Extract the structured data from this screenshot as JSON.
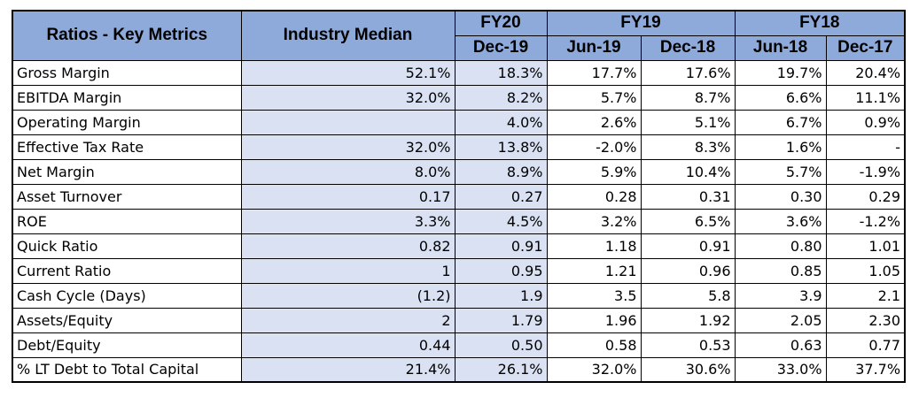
{
  "header": {
    "metric_col": "Ratios - Key Metrics",
    "median_col": "Industry Median",
    "fiscal_years": [
      "FY20",
      "FY19",
      "FY18"
    ],
    "periods": [
      "Dec-19",
      "Jun-19",
      "Dec-18",
      "Jun-18",
      "Dec-17"
    ]
  },
  "rows": [
    {
      "metric": "Gross Margin",
      "median": "52.1%",
      "values": [
        "18.3%",
        "17.7%",
        "17.6%",
        "19.7%",
        "20.4%"
      ]
    },
    {
      "metric": "EBITDA Margin",
      "median": "32.0%",
      "values": [
        "8.2%",
        "5.7%",
        "8.7%",
        "6.6%",
        "11.1%"
      ]
    },
    {
      "metric": "Operating Margin",
      "median": "",
      "values": [
        "4.0%",
        "2.6%",
        "5.1%",
        "6.7%",
        "0.9%"
      ]
    },
    {
      "metric": "Effective Tax Rate",
      "median": "32.0%",
      "values": [
        "13.8%",
        "-2.0%",
        "8.3%",
        "1.6%",
        "-"
      ]
    },
    {
      "metric": "Net Margin",
      "median": "8.0%",
      "values": [
        "8.9%",
        "5.9%",
        "10.4%",
        "5.7%",
        "-1.9%"
      ]
    },
    {
      "metric": "Asset Turnover",
      "median": "0.17",
      "values": [
        "0.27",
        "0.28",
        "0.31",
        "0.30",
        "0.29"
      ]
    },
    {
      "metric": "ROE",
      "median": "3.3%",
      "values": [
        "4.5%",
        "3.2%",
        "6.5%",
        "3.6%",
        "-1.2%"
      ]
    },
    {
      "metric": "Quick Ratio",
      "median": "0.82",
      "values": [
        "0.91",
        "1.18",
        "0.91",
        "0.80",
        "1.01"
      ]
    },
    {
      "metric": "Current Ratio",
      "median": "1",
      "values": [
        "0.95",
        "1.21",
        "0.96",
        "0.85",
        "1.05"
      ]
    },
    {
      "metric": "Cash Cycle (Days)",
      "median": "(1.2)",
      "values": [
        "1.9",
        "3.5",
        "5.8",
        "3.9",
        "2.1"
      ]
    },
    {
      "metric": "Assets/Equity",
      "median": "2",
      "values": [
        "1.79",
        "1.96",
        "1.92",
        "2.05",
        "2.30"
      ]
    },
    {
      "metric": "Debt/Equity",
      "median": "0.44",
      "values": [
        "0.50",
        "0.58",
        "0.53",
        "0.63",
        "0.77"
      ]
    },
    {
      "metric": "% LT Debt to Total Capital",
      "median": "21.4%",
      "values": [
        "26.1%",
        "32.0%",
        "30.6%",
        "33.0%",
        "37.7%"
      ]
    }
  ],
  "colors": {
    "header_bg": "#8eaadb",
    "shaded_cell_bg": "#d9e1f2",
    "border": "#000000"
  }
}
